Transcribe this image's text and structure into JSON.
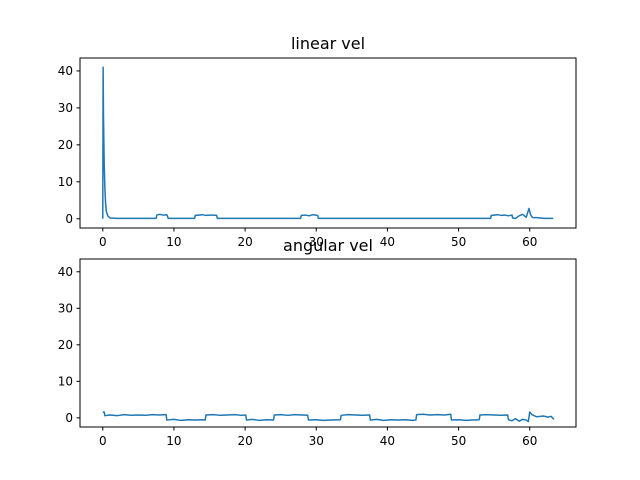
{
  "figure": {
    "background": "#ffffff"
  },
  "chart_data": [
    {
      "type": "line",
      "title": "linear vel",
      "xlabel": "",
      "ylabel": "",
      "xlim": [
        -3.2,
        66.5
      ],
      "ylim": [
        -2.5,
        43.5
      ],
      "xticks": [
        0,
        10,
        20,
        30,
        40,
        50,
        60
      ],
      "yticks": [
        0,
        10,
        20,
        30,
        40
      ],
      "xtick_labels": [
        "0",
        "10",
        "20",
        "30",
        "40",
        "50",
        "60"
      ],
      "ytick_labels": [
        "0",
        "10",
        "20",
        "30",
        "40"
      ],
      "grid": false,
      "series": [
        {
          "color": "#1f77b4",
          "x": [
            0,
            0.05,
            0.1,
            0.2,
            0.3,
            0.4,
            0.5,
            0.7,
            1.0,
            2.0,
            4.0,
            6.0,
            7.5,
            7.6,
            8.0,
            8.5,
            9.0,
            9.2,
            10.0,
            12.0,
            12.9,
            13.0,
            13.5,
            14.0,
            14.5,
            15.0,
            15.5,
            16.0,
            16.1,
            18.0,
            20.0,
            22.0,
            24.0,
            26.0,
            27.8,
            27.9,
            28.5,
            29.0,
            29.5,
            30.0,
            30.2,
            30.3,
            32.0,
            36.0,
            40.0,
            44.0,
            48.0,
            52.0,
            54.5,
            54.6,
            55.0,
            55.5,
            56.0,
            56.5,
            57.0,
            57.5,
            57.6,
            58.0,
            58.5,
            59.0,
            59.5,
            59.9,
            60.1,
            60.3,
            60.5,
            61.0,
            61.5,
            62.0,
            62.5,
            63.3
          ],
          "y": [
            0,
            41.0,
            28.0,
            15.0,
            8.0,
            4.0,
            2.0,
            0.8,
            0.2,
            0.1,
            0.1,
            0.1,
            0.1,
            1.0,
            1.2,
            1.0,
            1.1,
            0.1,
            0.1,
            0.1,
            0.1,
            0.9,
            1.0,
            1.1,
            0.9,
            1.0,
            1.0,
            0.9,
            0.1,
            0.1,
            0.1,
            0.1,
            0.1,
            0.1,
            0.1,
            0.9,
            1.0,
            0.8,
            1.1,
            1.0,
            0.9,
            0.1,
            0.1,
            0.1,
            0.1,
            0.1,
            0.1,
            0.1,
            0.1,
            0.9,
            1.0,
            1.1,
            0.9,
            1.0,
            0.8,
            1.0,
            0.2,
            0.1,
            0.8,
            1.2,
            0.4,
            2.8,
            1.2,
            0.5,
            0.3,
            0.3,
            0.2,
            0.1,
            0.1,
            0.1
          ]
        }
      ]
    },
    {
      "type": "line",
      "title": "angular vel",
      "xlabel": "",
      "ylabel": "",
      "xlim": [
        -3.2,
        66.5
      ],
      "ylim": [
        -2.5,
        43.5
      ],
      "xticks": [
        0,
        10,
        20,
        30,
        40,
        50,
        60
      ],
      "yticks": [
        0,
        10,
        20,
        30,
        40
      ],
      "xtick_labels": [
        "0",
        "10",
        "20",
        "30",
        "40",
        "50",
        "60"
      ],
      "ytick_labels": [
        "0",
        "10",
        "20",
        "30",
        "40"
      ],
      "grid": false,
      "series": [
        {
          "color": "#1f77b4",
          "x": [
            0,
            0.2,
            0.3,
            1.0,
            2.0,
            3.0,
            4.0,
            5.0,
            6.0,
            7.0,
            8.0,
            8.9,
            9.0,
            10.0,
            11.0,
            12.0,
            13.0,
            14.0,
            14.4,
            14.5,
            15.5,
            16.5,
            17.5,
            18.5,
            19.5,
            20.1,
            20.2,
            21.0,
            22.0,
            23.0,
            24.0,
            24.1,
            25.0,
            26.0,
            27.0,
            28.0,
            28.8,
            28.9,
            30.0,
            31.0,
            32.0,
            33.4,
            33.5,
            34.5,
            35.5,
            36.5,
            37.5,
            37.6,
            38.5,
            39.5,
            40.5,
            41.5,
            42.5,
            43.5,
            44.0,
            44.1,
            45.0,
            46.0,
            47.0,
            48.0,
            48.9,
            49.0,
            50.0,
            51.0,
            52.0,
            52.9,
            53.0,
            54.0,
            55.0,
            56.0,
            56.9,
            57.0,
            57.5,
            58.0,
            58.5,
            59.0,
            59.5,
            59.8,
            60.0,
            60.3,
            60.6,
            61.0,
            61.5,
            62.0,
            62.5,
            63.0,
            63.4
          ],
          "y": [
            1.5,
            1.6,
            0.6,
            0.8,
            0.6,
            0.9,
            0.7,
            0.8,
            0.7,
            0.9,
            0.8,
            0.9,
            -0.6,
            -0.4,
            -0.7,
            -0.5,
            -0.6,
            -0.5,
            -0.6,
            0.8,
            0.9,
            0.7,
            0.8,
            0.9,
            0.7,
            0.8,
            -0.6,
            -0.4,
            -0.7,
            -0.5,
            -0.6,
            0.8,
            0.9,
            0.7,
            0.9,
            0.8,
            0.7,
            -0.6,
            -0.5,
            -0.7,
            -0.6,
            -0.5,
            0.7,
            0.9,
            0.8,
            0.7,
            0.8,
            -0.6,
            -0.4,
            -0.7,
            -0.5,
            -0.6,
            -0.5,
            -0.7,
            -0.6,
            0.9,
            1.0,
            0.8,
            0.9,
            0.8,
            1.0,
            -0.6,
            -0.5,
            -0.7,
            -0.6,
            -0.5,
            0.8,
            0.9,
            0.8,
            0.7,
            0.8,
            -0.5,
            -0.8,
            -0.2,
            -0.9,
            -0.4,
            -0.6,
            -1.0,
            1.6,
            0.9,
            0.6,
            0.3,
            0.4,
            0.5,
            0.2,
            0.4,
            -0.4
          ]
        }
      ]
    }
  ]
}
